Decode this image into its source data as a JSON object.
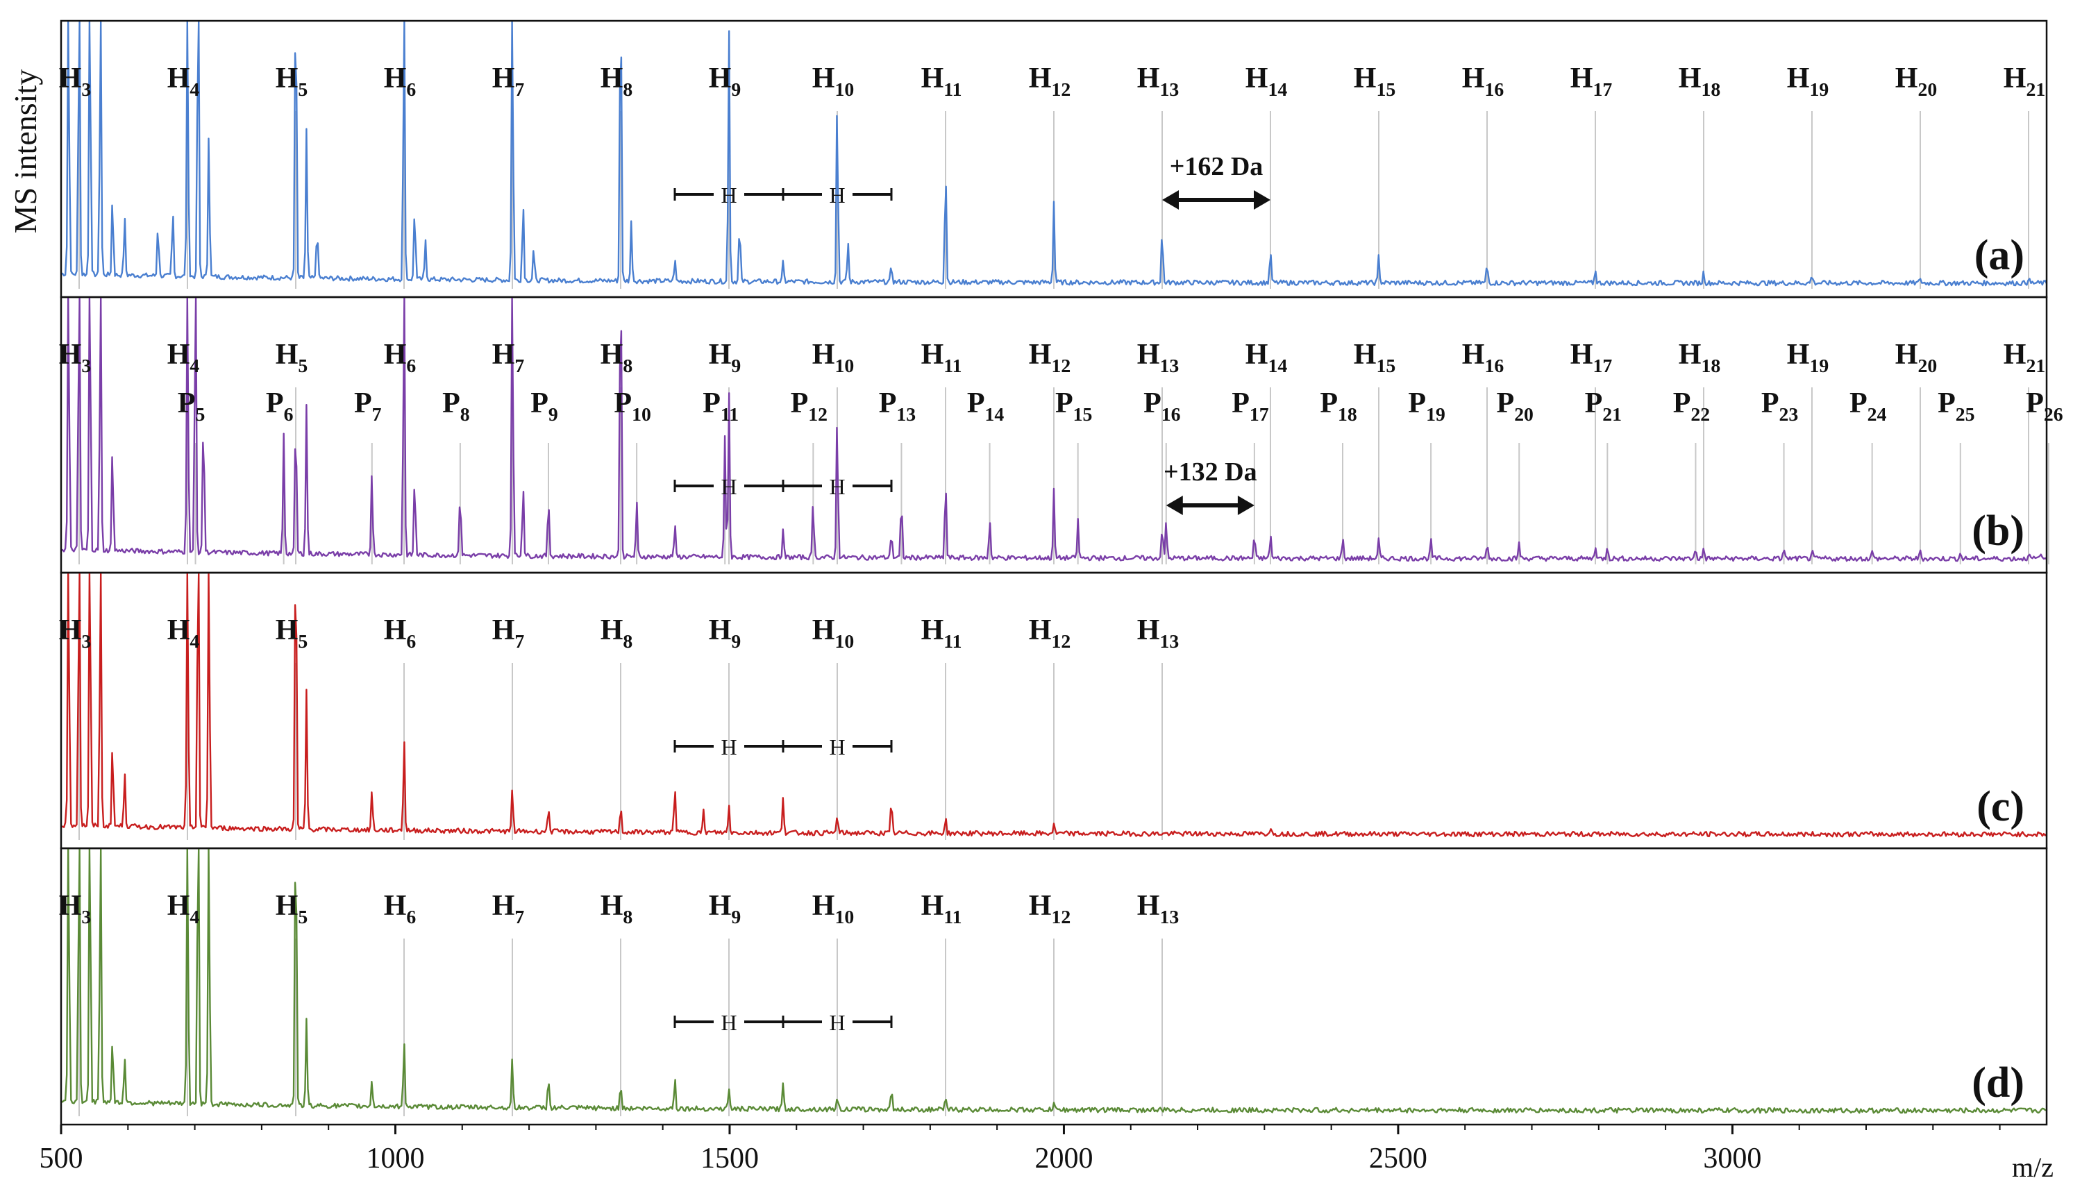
{
  "chart_data": {
    "type": "line",
    "title": "",
    "ylabel": "MS intensity",
    "xlabel": "m/z",
    "xlim": [
      500,
      3470
    ],
    "x_ticks": [
      500,
      1000,
      1500,
      2000,
      2500,
      3000
    ],
    "colors": {
      "a": "#4a7fd0",
      "b": "#7a3ea8",
      "c": "#c81e1e",
      "d": "#5a8a36"
    },
    "hexose_ladder": [
      {
        "sub": "3",
        "mz": 527
      },
      {
        "sub": "4",
        "mz": 689
      },
      {
        "sub": "5",
        "mz": 851
      },
      {
        "sub": "6",
        "mz": 1013
      },
      {
        "sub": "7",
        "mz": 1175
      },
      {
        "sub": "8",
        "mz": 1337
      },
      {
        "sub": "9",
        "mz": 1499
      },
      {
        "sub": "10",
        "mz": 1661
      },
      {
        "sub": "11",
        "mz": 1823
      },
      {
        "sub": "12",
        "mz": 1985
      },
      {
        "sub": "13",
        "mz": 2147
      },
      {
        "sub": "14",
        "mz": 2309
      },
      {
        "sub": "15",
        "mz": 2471
      },
      {
        "sub": "16",
        "mz": 2633
      },
      {
        "sub": "17",
        "mz": 2795
      },
      {
        "sub": "18",
        "mz": 2957
      },
      {
        "sub": "19",
        "mz": 3119
      },
      {
        "sub": "20",
        "mz": 3281
      },
      {
        "sub": "21",
        "mz": 3443
      }
    ],
    "pentose_ladder": [
      {
        "sub": "5",
        "mz": 701
      },
      {
        "sub": "6",
        "mz": 833
      },
      {
        "sub": "7",
        "mz": 965
      },
      {
        "sub": "8",
        "mz": 1097
      },
      {
        "sub": "9",
        "mz": 1229
      },
      {
        "sub": "10",
        "mz": 1361
      },
      {
        "sub": "11",
        "mz": 1493
      },
      {
        "sub": "12",
        "mz": 1625
      },
      {
        "sub": "13",
        "mz": 1757
      },
      {
        "sub": "14",
        "mz": 1889
      },
      {
        "sub": "15",
        "mz": 2021
      },
      {
        "sub": "16",
        "mz": 2153
      },
      {
        "sub": "17",
        "mz": 2285
      },
      {
        "sub": "18",
        "mz": 2417
      },
      {
        "sub": "19",
        "mz": 2549
      },
      {
        "sub": "20",
        "mz": 2681
      },
      {
        "sub": "21",
        "mz": 2813
      },
      {
        "sub": "22",
        "mz": 2945
      },
      {
        "sub": "23",
        "mz": 3077
      },
      {
        "sub": "24",
        "mz": 3209
      },
      {
        "sub": "25",
        "mz": 3341
      },
      {
        "sub": "26",
        "mz": 3473
      }
    ],
    "panels": [
      {
        "id": "a",
        "panel_label": "(a)",
        "h_count": 19,
        "p_count": 0,
        "spacing_annotation": {
          "text": "+162 Da",
          "from_mz": 2147,
          "to_mz": 2309
        },
        "bracket": {
          "unit": "H",
          "mz": [
            1418,
            1580,
            1742
          ]
        },
        "peaks": [
          [
            511,
            1.2
          ],
          [
            527,
            1.2
          ],
          [
            543,
            1.2
          ],
          [
            559,
            1.2
          ],
          [
            577,
            0.3
          ],
          [
            595,
            0.22
          ],
          [
            645,
            0.2
          ],
          [
            667,
            0.25
          ],
          [
            689,
            1.2
          ],
          [
            705,
            1.2
          ],
          [
            721,
            0.55
          ],
          [
            851,
            1.2
          ],
          [
            867,
            0.55
          ],
          [
            883,
            0.2
          ],
          [
            1013,
            1.2
          ],
          [
            1029,
            0.28
          ],
          [
            1045,
            0.15
          ],
          [
            1175,
            1.2
          ],
          [
            1191,
            0.3
          ],
          [
            1207,
            0.12
          ],
          [
            1337,
            1.2
          ],
          [
            1353,
            0.22
          ],
          [
            1418,
            0.08
          ],
          [
            1499,
            0.95
          ],
          [
            1515,
            0.22
          ],
          [
            1580,
            0.07
          ],
          [
            1661,
            0.7
          ],
          [
            1677,
            0.15
          ],
          [
            1742,
            0.06
          ],
          [
            1823,
            0.45
          ],
          [
            1985,
            0.3
          ],
          [
            2147,
            0.2
          ],
          [
            2309,
            0.12
          ],
          [
            2471,
            0.1
          ],
          [
            2633,
            0.07
          ],
          [
            2795,
            0.05
          ],
          [
            2957,
            0.04
          ],
          [
            3119,
            0.03
          ],
          [
            3281,
            0.02
          ],
          [
            3443,
            0.02
          ]
        ]
      },
      {
        "id": "b",
        "panel_label": "(b)",
        "h_count": 19,
        "p_count": 22,
        "spacing_annotation": {
          "text": "+132 Da",
          "from_mz": 2153,
          "to_mz": 2285
        },
        "bracket": {
          "unit": "H",
          "mz": [
            1418,
            1580,
            1742
          ]
        },
        "peaks": [
          [
            511,
            1.2
          ],
          [
            527,
            1.2
          ],
          [
            543,
            1.2
          ],
          [
            559,
            1.2
          ],
          [
            577,
            0.4
          ],
          [
            689,
            1.2
          ],
          [
            701,
            1.2
          ],
          [
            713,
            0.55
          ],
          [
            833,
            0.45
          ],
          [
            851,
            0.55
          ],
          [
            867,
            0.55
          ],
          [
            965,
            0.32
          ],
          [
            1013,
            1.2
          ],
          [
            1029,
            0.3
          ],
          [
            1097,
            0.25
          ],
          [
            1175,
            1.2
          ],
          [
            1191,
            0.28
          ],
          [
            1229,
            0.22
          ],
          [
            1337,
            1.2
          ],
          [
            1361,
            0.2
          ],
          [
            1418,
            0.12
          ],
          [
            1493,
            0.45
          ],
          [
            1499,
            0.62
          ],
          [
            1580,
            0.1
          ],
          [
            1625,
            0.22
          ],
          [
            1661,
            0.55
          ],
          [
            1742,
            0.1
          ],
          [
            1757,
            0.22
          ],
          [
            1823,
            0.3
          ],
          [
            1889,
            0.15
          ],
          [
            1985,
            0.25
          ],
          [
            2021,
            0.14
          ],
          [
            2147,
            0.12
          ],
          [
            2153,
            0.14
          ],
          [
            2285,
            0.09
          ],
          [
            2309,
            0.09
          ],
          [
            2417,
            0.08
          ],
          [
            2471,
            0.07
          ],
          [
            2549,
            0.07
          ],
          [
            2633,
            0.06
          ],
          [
            2681,
            0.06
          ],
          [
            2795,
            0.05
          ],
          [
            2813,
            0.05
          ],
          [
            2945,
            0.04
          ],
          [
            2957,
            0.04
          ],
          [
            3077,
            0.04
          ],
          [
            3119,
            0.03
          ],
          [
            3209,
            0.03
          ],
          [
            3281,
            0.03
          ],
          [
            3341,
            0.02
          ],
          [
            3443,
            0.02
          ],
          [
            3460,
            0.02
          ]
        ]
      },
      {
        "id": "c",
        "panel_label": "(c)",
        "h_count": 11,
        "p_count": 0,
        "spacing_annotation": null,
        "bracket": {
          "unit": "H",
          "mz": [
            1418,
            1580,
            1742
          ]
        },
        "peaks": [
          [
            511,
            1.2
          ],
          [
            527,
            1.2
          ],
          [
            543,
            1.2
          ],
          [
            559,
            1.2
          ],
          [
            577,
            0.32
          ],
          [
            595,
            0.22
          ],
          [
            689,
            1.2
          ],
          [
            705,
            1.2
          ],
          [
            721,
            1.2
          ],
          [
            851,
            1.2
          ],
          [
            867,
            0.52
          ],
          [
            965,
            0.15
          ],
          [
            1013,
            0.35
          ],
          [
            1175,
            0.16
          ],
          [
            1229,
            0.1
          ],
          [
            1337,
            0.1
          ],
          [
            1418,
            0.18
          ],
          [
            1461,
            0.08
          ],
          [
            1499,
            0.1
          ],
          [
            1580,
            0.14
          ],
          [
            1661,
            0.07
          ],
          [
            1742,
            0.12
          ],
          [
            1823,
            0.06
          ],
          [
            1985,
            0.04
          ],
          [
            2309,
            0.03
          ]
        ]
      },
      {
        "id": "d",
        "panel_label": "(d)",
        "h_count": 11,
        "p_count": 0,
        "spacing_annotation": null,
        "bracket": {
          "unit": "H",
          "mz": [
            1418,
            1580,
            1742
          ]
        },
        "peaks": [
          [
            511,
            1.2
          ],
          [
            527,
            1.2
          ],
          [
            543,
            1.2
          ],
          [
            559,
            1.2
          ],
          [
            577,
            0.25
          ],
          [
            595,
            0.18
          ],
          [
            689,
            1.2
          ],
          [
            705,
            1.2
          ],
          [
            721,
            1.2
          ],
          [
            851,
            1.2
          ],
          [
            867,
            0.32
          ],
          [
            965,
            0.1
          ],
          [
            1013,
            0.25
          ],
          [
            1175,
            0.18
          ],
          [
            1229,
            0.12
          ],
          [
            1337,
            0.1
          ],
          [
            1418,
            0.12
          ],
          [
            1499,
            0.08
          ],
          [
            1580,
            0.1
          ],
          [
            1661,
            0.05
          ],
          [
            1742,
            0.08
          ],
          [
            1823,
            0.04
          ],
          [
            1985,
            0.03
          ]
        ]
      }
    ]
  }
}
